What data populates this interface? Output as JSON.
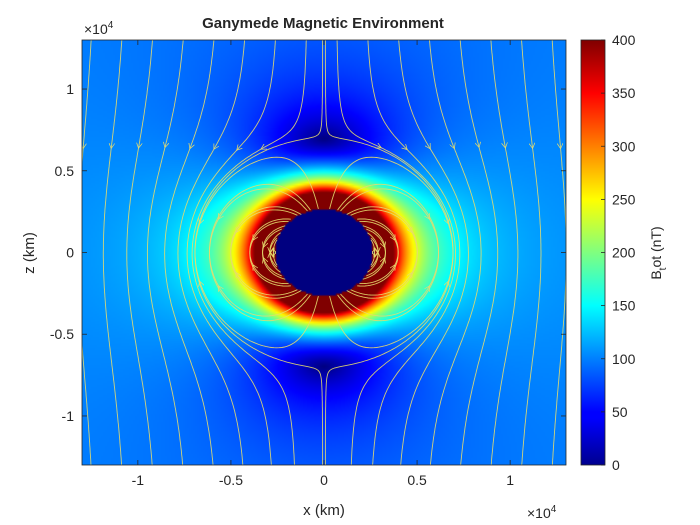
{
  "chart_data": {
    "type": "heatmap",
    "title": "Ganymede Magnetic Environment",
    "xlabel": "x (km)",
    "ylabel": "z (km)",
    "x_exponent": "×10^4",
    "y_exponent": "×10^4",
    "xlim": [
      -13000,
      13000
    ],
    "ylim": [
      -13000,
      13000
    ],
    "x_ticks": [
      -10000,
      -5000,
      0,
      5000,
      10000
    ],
    "x_tick_labels": [
      "-1",
      "-0.5",
      "0",
      "0.5",
      "1"
    ],
    "y_ticks": [
      -10000,
      -5000,
      0,
      5000,
      10000
    ],
    "y_tick_labels": [
      "-1",
      "-0.5",
      "0",
      "0.5",
      "1"
    ],
    "colorbar": {
      "label_main": "B",
      "label_sub": "t",
      "label_rest": "ot (nT)",
      "limits": [
        0,
        400
      ],
      "ticks": [
        0,
        50,
        100,
        150,
        200,
        250,
        300,
        350,
        400
      ],
      "tick_labels": [
        "0",
        "50",
        "100",
        "150",
        "200",
        "250",
        "300",
        "350",
        "400"
      ],
      "colormap": "jet"
    },
    "moon_radius_km": 2634,
    "streamline_color": "#e6dc6e",
    "grid": false
  }
}
